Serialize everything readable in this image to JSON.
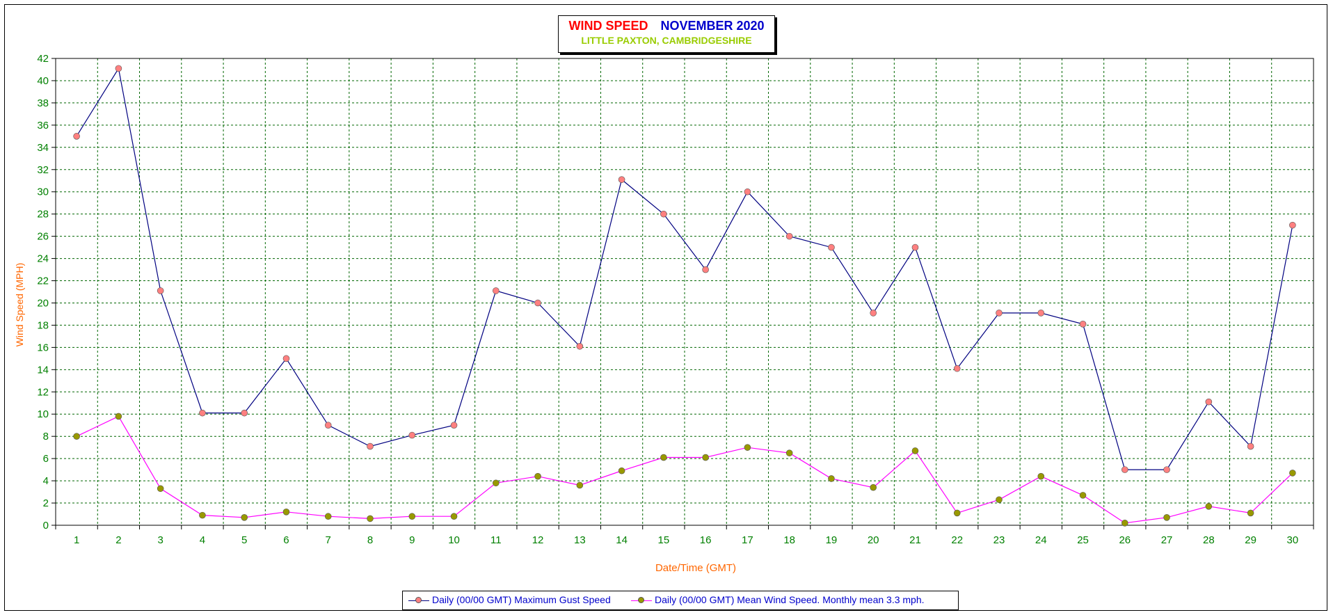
{
  "chart_data": {
    "type": "line",
    "title": "WIND SPEED",
    "title_month": "NOVEMBER 2020",
    "subtitle": "LITTLE PAXTON, CAMBRIDGESHIRE",
    "xlabel": "Date/Time (GMT)",
    "ylabel": "Wind Speed (MPH)",
    "ylim": [
      0,
      42
    ],
    "ytick_step": 2,
    "grid": true,
    "legend_position": "bottom",
    "categories": [
      "1",
      "2",
      "3",
      "4",
      "5",
      "6",
      "7",
      "8",
      "9",
      "10",
      "11",
      "12",
      "13",
      "14",
      "15",
      "16",
      "17",
      "18",
      "19",
      "20",
      "21",
      "22",
      "23",
      "24",
      "25",
      "26",
      "27",
      "28",
      "29",
      "30"
    ],
    "series": [
      {
        "name": "Daily (00/00 GMT) Maximum Gust Speed",
        "line_color": "#000080",
        "marker_color": "#ff8080",
        "values": [
          35,
          41.1,
          21.1,
          10.1,
          10.1,
          15,
          9,
          7.1,
          8.1,
          9,
          21.1,
          20,
          16.1,
          31.1,
          28,
          23,
          30,
          26,
          25,
          19.1,
          25,
          14.1,
          19.1,
          19.1,
          18.1,
          5,
          5,
          11.1,
          7.1,
          27
        ]
      },
      {
        "name": "Daily (00/00 GMT) Mean Wind Speed. Monthly mean 3.3 mph.",
        "line_color": "#ff00ff",
        "marker_color": "#999900",
        "values": [
          8,
          9.8,
          3.3,
          0.9,
          0.7,
          1.2,
          0.8,
          0.6,
          0.8,
          0.8,
          3.8,
          4.4,
          3.6,
          4.9,
          6.1,
          6.1,
          7,
          6.5,
          4.2,
          3.4,
          6.7,
          1.1,
          2.3,
          4.4,
          2.7,
          0.2,
          0.7,
          1.7,
          1.1,
          4.7
        ]
      }
    ]
  },
  "colors": {
    "title_primary": "#ff0000",
    "title_month": "#0000cc",
    "subtitle": "#99cc00",
    "tick_labels": "#008000",
    "axis_titles": "#ff6600",
    "grid": "#006600",
    "legend_text": "#0000cc"
  }
}
